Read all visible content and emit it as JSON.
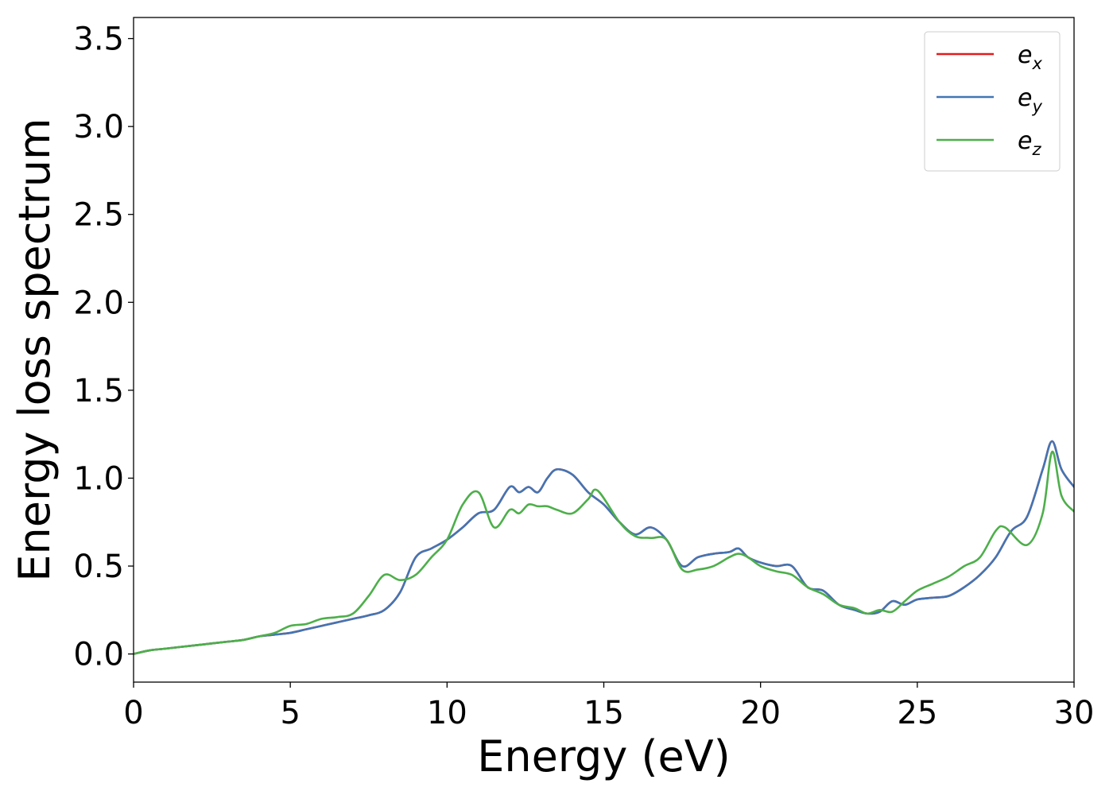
{
  "chart_data": {
    "type": "line",
    "title": "",
    "xlabel": "Energy (eV)",
    "ylabel": "Energy loss spectrum",
    "xlim": [
      0,
      30
    ],
    "ylim": [
      -0.16,
      3.62
    ],
    "xticks": [
      0,
      5,
      10,
      15,
      20,
      25,
      30
    ],
    "xtick_labels": [
      "0",
      "5",
      "10",
      "15",
      "20",
      "25",
      "30"
    ],
    "yticks": [
      0.0,
      0.5,
      1.0,
      1.5,
      2.0,
      2.5,
      3.0,
      3.5
    ],
    "ytick_labels": [
      "0.0",
      "0.5",
      "1.0",
      "1.5",
      "2.0",
      "2.5",
      "3.0",
      "3.5"
    ],
    "grid": false,
    "legend_position": "top-right",
    "series": [
      {
        "name": "e_x",
        "label_base": "e",
        "label_sub": "x",
        "color": "#e41a1c",
        "x": [
          0,
          0.5,
          1,
          1.5,
          2,
          2.5,
          3,
          3.5,
          4,
          4.5,
          5,
          5.5,
          6,
          6.5,
          7,
          7.5,
          8,
          8.5,
          9,
          9.5,
          10,
          10.5,
          11,
          11.5,
          12,
          12.3,
          12.6,
          12.9,
          13.2,
          13.5,
          14,
          14.5,
          15,
          15.5,
          16,
          16.5,
          17,
          17.5,
          18,
          18.5,
          19,
          19.3,
          19.6,
          20,
          20.5,
          21,
          21.5,
          22,
          22.5,
          23,
          23.4,
          23.8,
          24.2,
          24.6,
          25,
          25.5,
          26,
          26.5,
          27,
          27.5,
          28,
          28.5,
          29,
          29.3,
          29.6,
          30
        ],
        "y": [
          0.0,
          0.02,
          0.03,
          0.04,
          0.05,
          0.06,
          0.07,
          0.08,
          0.1,
          0.11,
          0.12,
          0.14,
          0.16,
          0.18,
          0.2,
          0.22,
          0.25,
          0.35,
          0.55,
          0.6,
          0.65,
          0.72,
          0.8,
          0.82,
          0.95,
          0.92,
          0.95,
          0.92,
          1.0,
          1.05,
          1.02,
          0.92,
          0.85,
          0.75,
          0.68,
          0.72,
          0.65,
          0.5,
          0.55,
          0.57,
          0.58,
          0.6,
          0.55,
          0.52,
          0.5,
          0.5,
          0.38,
          0.36,
          0.28,
          0.25,
          0.23,
          0.24,
          0.3,
          0.28,
          0.31,
          0.32,
          0.33,
          0.38,
          0.45,
          0.55,
          0.7,
          0.78,
          1.05,
          1.21,
          1.05,
          0.95
        ]
      },
      {
        "name": "e_y",
        "label_base": "e",
        "label_sub": "y",
        "color": "#4275b4",
        "x": [
          0,
          0.5,
          1,
          1.5,
          2,
          2.5,
          3,
          3.5,
          4,
          4.5,
          5,
          5.5,
          6,
          6.5,
          7,
          7.5,
          8,
          8.5,
          9,
          9.5,
          10,
          10.5,
          11,
          11.5,
          12,
          12.3,
          12.6,
          12.9,
          13.2,
          13.5,
          14,
          14.5,
          15,
          15.5,
          16,
          16.5,
          17,
          17.5,
          18,
          18.5,
          19,
          19.3,
          19.6,
          20,
          20.5,
          21,
          21.5,
          22,
          22.5,
          23,
          23.4,
          23.8,
          24.2,
          24.6,
          25,
          25.5,
          26,
          26.5,
          27,
          27.5,
          28,
          28.5,
          29,
          29.3,
          29.6,
          30
        ],
        "y": [
          0.0,
          0.02,
          0.03,
          0.04,
          0.05,
          0.06,
          0.07,
          0.08,
          0.1,
          0.11,
          0.12,
          0.14,
          0.16,
          0.18,
          0.2,
          0.22,
          0.25,
          0.35,
          0.55,
          0.6,
          0.65,
          0.72,
          0.8,
          0.82,
          0.95,
          0.92,
          0.95,
          0.92,
          1.0,
          1.05,
          1.02,
          0.92,
          0.85,
          0.75,
          0.68,
          0.72,
          0.65,
          0.5,
          0.55,
          0.57,
          0.58,
          0.6,
          0.55,
          0.52,
          0.5,
          0.5,
          0.38,
          0.36,
          0.28,
          0.25,
          0.23,
          0.24,
          0.3,
          0.28,
          0.31,
          0.32,
          0.33,
          0.38,
          0.45,
          0.55,
          0.7,
          0.78,
          1.05,
          1.21,
          1.05,
          0.95
        ]
      },
      {
        "name": "e_z",
        "label_base": "e",
        "label_sub": "z",
        "color": "#4daf4a",
        "x": [
          0,
          0.5,
          1,
          1.5,
          2,
          2.5,
          3,
          3.5,
          4,
          4.5,
          5,
          5.5,
          6,
          6.5,
          7,
          7.5,
          8,
          8.5,
          9,
          9.5,
          10,
          10.5,
          11,
          11.5,
          12,
          12.3,
          12.6,
          12.9,
          13.2,
          13.5,
          14,
          14.5,
          14.8,
          15.5,
          16,
          16.5,
          17,
          17.5,
          18,
          18.5,
          19,
          19.3,
          19.6,
          20,
          20.5,
          21,
          21.5,
          22,
          22.5,
          23,
          23.4,
          23.8,
          24.2,
          24.6,
          25,
          25.5,
          26,
          26.5,
          27,
          27.5,
          27.8,
          28.5,
          29,
          29.3,
          29.6,
          30
        ],
        "y": [
          0.0,
          0.02,
          0.03,
          0.04,
          0.05,
          0.06,
          0.07,
          0.08,
          0.1,
          0.12,
          0.16,
          0.17,
          0.2,
          0.21,
          0.23,
          0.33,
          0.45,
          0.42,
          0.45,
          0.55,
          0.65,
          0.85,
          0.92,
          0.72,
          0.82,
          0.8,
          0.85,
          0.84,
          0.84,
          0.82,
          0.8,
          0.88,
          0.93,
          0.75,
          0.67,
          0.66,
          0.65,
          0.48,
          0.48,
          0.5,
          0.55,
          0.57,
          0.55,
          0.5,
          0.47,
          0.45,
          0.38,
          0.34,
          0.28,
          0.26,
          0.23,
          0.25,
          0.24,
          0.3,
          0.36,
          0.4,
          0.44,
          0.5,
          0.55,
          0.7,
          0.72,
          0.62,
          0.8,
          1.15,
          0.9,
          0.81
        ]
      }
    ]
  }
}
